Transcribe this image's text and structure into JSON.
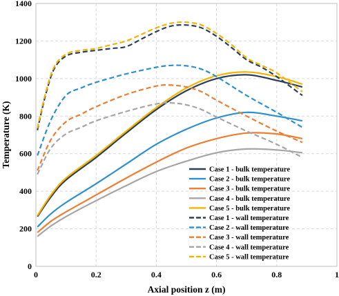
{
  "chart_data": {
    "type": "line",
    "title": "",
    "xlabel": "Axial position z (m)",
    "ylabel": "Temperature (K)",
    "xlim": [
      0,
      1
    ],
    "ylim": [
      0,
      1400
    ],
    "x_ticks": [
      "0",
      "0.2",
      "0.4",
      "0.6",
      "0.8",
      "1"
    ],
    "y_ticks": [
      "0",
      "200",
      "400",
      "600",
      "800",
      "1000",
      "1200",
      "1400"
    ],
    "grid": true,
    "legend_position": "bottom-right",
    "series": [
      {
        "name": "Case 1 - bulk temperature",
        "color": "#2c3e57",
        "dash": "solid",
        "x": [
          0.005,
          0.05,
          0.1,
          0.2,
          0.3,
          0.4,
          0.5,
          0.6,
          0.7,
          0.8,
          0.885
        ],
        "y": [
          265,
          370,
          460,
          580,
          710,
          835,
          935,
          1000,
          1020,
          990,
          955
        ]
      },
      {
        "name": "Case 2 - bulk temperature",
        "color": "#2b8fd0",
        "dash": "solid",
        "x": [
          0.005,
          0.05,
          0.1,
          0.2,
          0.3,
          0.4,
          0.5,
          0.6,
          0.7,
          0.8,
          0.885
        ],
        "y": [
          210,
          280,
          340,
          440,
          545,
          650,
          730,
          790,
          820,
          800,
          775
        ]
      },
      {
        "name": "Case 3 - bulk temperature",
        "color": "#ed7d31",
        "dash": "solid",
        "x": [
          0.005,
          0.05,
          0.1,
          0.2,
          0.3,
          0.4,
          0.5,
          0.6,
          0.7,
          0.8,
          0.885
        ],
        "y": [
          180,
          240,
          290,
          380,
          470,
          555,
          630,
          680,
          710,
          705,
          680
        ]
      },
      {
        "name": "Case 4 - bulk temperature",
        "color": "#a5a5a5",
        "dash": "solid",
        "x": [
          0.005,
          0.05,
          0.1,
          0.2,
          0.3,
          0.4,
          0.5,
          0.6,
          0.7,
          0.8,
          0.885
        ],
        "y": [
          160,
          215,
          265,
          350,
          430,
          505,
          560,
          605,
          625,
          620,
          605
        ]
      },
      {
        "name": "Case 5 - bulk temperature",
        "color": "#f2b400",
        "dash": "solid",
        "x": [
          0.005,
          0.05,
          0.1,
          0.2,
          0.3,
          0.4,
          0.5,
          0.6,
          0.7,
          0.8,
          0.885
        ],
        "y": [
          270,
          380,
          470,
          590,
          720,
          845,
          950,
          1015,
          1035,
          1010,
          970
        ]
      },
      {
        "name": "Case 1 - wall temperature",
        "color": "#2c3e57",
        "dash": "dashed",
        "x": [
          0.005,
          0.03,
          0.06,
          0.1,
          0.15,
          0.2,
          0.25,
          0.3,
          0.35,
          0.4,
          0.45,
          0.5,
          0.55,
          0.6,
          0.65,
          0.7,
          0.75,
          0.8,
          0.885
        ],
        "y": [
          725,
          900,
          1050,
          1120,
          1140,
          1150,
          1160,
          1170,
          1210,
          1250,
          1280,
          1285,
          1270,
          1225,
          1165,
          1100,
          1060,
          1010,
          910
        ]
      },
      {
        "name": "Case 2 - wall temperature",
        "color": "#2b8fd0",
        "dash": "dashed",
        "x": [
          0.005,
          0.05,
          0.1,
          0.15,
          0.2,
          0.3,
          0.4,
          0.45,
          0.5,
          0.55,
          0.6,
          0.7,
          0.8,
          0.885
        ],
        "y": [
          590,
          780,
          910,
          950,
          980,
          1025,
          1060,
          1070,
          1068,
          1050,
          1010,
          910,
          820,
          740
        ]
      },
      {
        "name": "Case 3 - wall temperature",
        "color": "#ed7d31",
        "dash": "dashed",
        "x": [
          0.005,
          0.05,
          0.1,
          0.15,
          0.2,
          0.3,
          0.4,
          0.45,
          0.5,
          0.55,
          0.6,
          0.7,
          0.8,
          0.885
        ],
        "y": [
          510,
          675,
          770,
          810,
          850,
          915,
          960,
          965,
          955,
          930,
          885,
          800,
          720,
          660
        ]
      },
      {
        "name": "Case 4 - wall temperature",
        "color": "#a5a5a5",
        "dash": "dashed",
        "x": [
          0.005,
          0.05,
          0.1,
          0.15,
          0.2,
          0.3,
          0.4,
          0.45,
          0.5,
          0.55,
          0.6,
          0.7,
          0.8,
          0.885
        ],
        "y": [
          490,
          630,
          705,
          740,
          775,
          825,
          865,
          870,
          860,
          835,
          795,
          720,
          650,
          580
        ]
      },
      {
        "name": "Case 5 - wall temperature",
        "color": "#f2b400",
        "dash": "dashed",
        "x": [
          0.005,
          0.03,
          0.06,
          0.1,
          0.15,
          0.2,
          0.25,
          0.3,
          0.35,
          0.4,
          0.45,
          0.5,
          0.55,
          0.6,
          0.65,
          0.7,
          0.75,
          0.8,
          0.885
        ],
        "y": [
          735,
          910,
          1060,
          1130,
          1150,
          1160,
          1180,
          1200,
          1235,
          1270,
          1295,
          1300,
          1285,
          1240,
          1180,
          1110,
          1070,
          1030,
          930
        ]
      }
    ]
  }
}
